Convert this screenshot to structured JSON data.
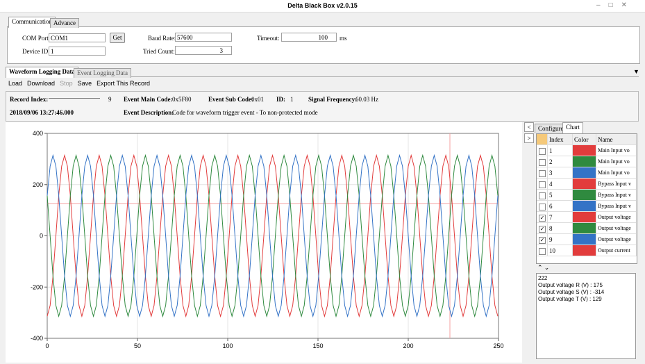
{
  "window": {
    "title": "Delta Black Box v2.0.15"
  },
  "comm_tabs": [
    "Communication",
    "Advance"
  ],
  "fields": {
    "com_port": {
      "label": "COM Port:",
      "value": "COM1"
    },
    "get": "Get",
    "device_id": {
      "label": "Device ID:",
      "value": "1"
    },
    "baud_rate": {
      "label": "Baud Rate:",
      "value": "57600"
    },
    "tried_count": {
      "label": "Tried Count:",
      "value": "3"
    },
    "timeout": {
      "label": "Timeout:",
      "value": "100",
      "unit": "ms"
    }
  },
  "log_tabs": [
    "Waveform Logging Data",
    "Event Logging Data"
  ],
  "toolbar": [
    "Load",
    "Download",
    "Stop",
    "Save",
    "Export This Record"
  ],
  "record": {
    "index_label": "Record Index:",
    "index": "9",
    "main_code_label": "Event Main Code:",
    "main_code": "0x5F80",
    "sub_code_label": "Event Sub Code:",
    "sub_code": "0x01",
    "id_label": "ID:",
    "id": "1",
    "freq_label": "Signal Frequency:",
    "freq": "60.03 Hz",
    "timestamp": "2018/09/06 13:27:46.000",
    "desc_label": "Event Description:",
    "desc": "Code for waveform trigger event - To non-protected mode"
  },
  "chart_data": {
    "type": "line",
    "xlim": [
      0,
      250
    ],
    "xticks": [
      0,
      50,
      100,
      150,
      200,
      250
    ],
    "ylim": [
      -400,
      400
    ],
    "yticks": [
      -400,
      -200,
      0,
      200,
      400
    ],
    "grid": true,
    "x": [
      0,
      1.6,
      3.2,
      4.8,
      6.4,
      8,
      9.6,
      11.2,
      12.8,
      14.4,
      16,
      17.6,
      19.2,
      20.8,
      22.4,
      24,
      25.6,
      27.2,
      28.8,
      30.4,
      32,
      33.6,
      35.2,
      36.8,
      38.4,
      40,
      41.6,
      43.2,
      44.8,
      46.4,
      48,
      49.6,
      51.2,
      52.8,
      54.4,
      56,
      57.6,
      59.2,
      60.8,
      62.4,
      64,
      65.6,
      67.2,
      68.8,
      70.4,
      72,
      73.6,
      75.2,
      76.8,
      78.4,
      80,
      81.6,
      83.2,
      84.8,
      86.4,
      88,
      89.6,
      91.2,
      92.8,
      94.4,
      96,
      97.6,
      99.2,
      100.8,
      102.4,
      104,
      105.6,
      107.2,
      108.8,
      110.4,
      112,
      113.6,
      115.2,
      116.8,
      118.4,
      120,
      121.6,
      123.2,
      124.8,
      126.4,
      128,
      129.6,
      131.2,
      132.8,
      134.4,
      136,
      137.6,
      139.2,
      140.8,
      142.4,
      144,
      145.6,
      147.2,
      148.8,
      150.4,
      152,
      153.6,
      155.2,
      156.8,
      158.4,
      160,
      161.6,
      163.2,
      164.8,
      166.4,
      168,
      169.6,
      171.2,
      172.8,
      174.4,
      176,
      177.6,
      179.2,
      180.8,
      182.4,
      184,
      185.6,
      187.2,
      188.8,
      190.4,
      192,
      193.6,
      195.2,
      196.8,
      198.4,
      200,
      201.6,
      203.2,
      204.8,
      206.4,
      208,
      209.6,
      211.2,
      212.8,
      214.4,
      216,
      217.6,
      219.2,
      220.8,
      222.4,
      224,
      225.6,
      227.2,
      228.8,
      230.4,
      232,
      233.6,
      235.2,
      236.8,
      238.4,
      240,
      241.6,
      243.2,
      244.8,
      246.4,
      248,
      249.6
    ],
    "series": [
      {
        "color": "#e23c3c",
        "values": [
          -314,
          -272,
          -157,
          0,
          157,
          272,
          314,
          272,
          157,
          0,
          -157,
          -272,
          -314,
          -272,
          -157,
          0,
          157,
          272,
          314,
          272,
          157,
          0,
          -157,
          -272,
          -314,
          -272,
          -157,
          0,
          157,
          272,
          314,
          272,
          157,
          0,
          -157,
          -272,
          -314,
          -272,
          -157,
          0,
          157,
          272,
          314,
          272,
          157,
          0,
          -157,
          -272,
          -314,
          -272,
          -157,
          0,
          157,
          272,
          314,
          272,
          157,
          0,
          -157,
          -272,
          -314,
          -272,
          -157,
          0,
          157,
          272,
          314,
          272,
          157,
          0,
          -157,
          -272,
          -314,
          -272,
          -157,
          0,
          157,
          272,
          314,
          272,
          157,
          0,
          -157,
          -272,
          -314,
          -272,
          -157,
          0,
          157,
          272,
          314,
          272,
          157,
          0,
          -157,
          -272,
          -314,
          -272,
          -157,
          0,
          157,
          272,
          314,
          272,
          157,
          0,
          -157,
          -272,
          -314,
          -272,
          -157,
          0,
          157,
          272,
          314,
          272,
          157,
          0,
          -157,
          -272,
          -314,
          -272,
          -157,
          0,
          157,
          272,
          314,
          272,
          157,
          0,
          -157,
          -272,
          -314,
          -272,
          -157,
          0,
          157,
          272,
          314,
          272,
          157,
          0,
          -157,
          -272,
          -314,
          -272,
          -157,
          0,
          157,
          272,
          314,
          272,
          157,
          0,
          -157,
          -272,
          -314
        ]
      },
      {
        "color": "#2f8a3f",
        "values": [
          157,
          0,
          -157,
          -272,
          -314,
          -272,
          -157,
          0,
          157,
          272,
          314,
          272,
          157,
          0,
          -157,
          -272,
          -314,
          -272,
          -157,
          0,
          157,
          272,
          314,
          272,
          157,
          0,
          -157,
          -272,
          -314,
          -272,
          -157,
          0,
          157,
          272,
          314,
          272,
          157,
          0,
          -157,
          -272,
          -314,
          -272,
          -157,
          0,
          157,
          272,
          314,
          272,
          157,
          0,
          -157,
          -272,
          -314,
          -272,
          -157,
          0,
          157,
          272,
          314,
          272,
          157,
          0,
          -157,
          -272,
          -314,
          -272,
          -157,
          0,
          157,
          272,
          314,
          272,
          157,
          0,
          -157,
          -272,
          -314,
          -272,
          -157,
          0,
          157,
          272,
          314,
          272,
          157,
          0,
          -157,
          -272,
          -314,
          -272,
          -157,
          0,
          157,
          272,
          314,
          272,
          157,
          0,
          -157,
          -272,
          -314,
          -272,
          -157,
          0,
          157,
          272,
          314,
          272,
          157,
          0,
          -157,
          -272,
          -314,
          -272,
          -157,
          0,
          157,
          272,
          314,
          272,
          157,
          0,
          -157,
          -272,
          -314,
          -272,
          -157,
          0,
          157,
          272,
          314,
          272,
          157,
          0,
          -157,
          -272,
          -314,
          -272,
          -157,
          0,
          157,
          272,
          314,
          272,
          157,
          0,
          -157,
          -272,
          -314,
          -272,
          -157,
          0,
          157,
          272,
          314,
          272,
          157
        ]
      },
      {
        "color": "#3473c6",
        "values": [
          157,
          272,
          314,
          272,
          157,
          0,
          -157,
          -272,
          -314,
          -272,
          -157,
          0,
          157,
          272,
          314,
          272,
          157,
          0,
          -157,
          -272,
          -314,
          -272,
          -157,
          0,
          157,
          272,
          314,
          272,
          157,
          0,
          -157,
          -272,
          -314,
          -272,
          -157,
          0,
          157,
          272,
          314,
          272,
          157,
          0,
          -157,
          -272,
          -314,
          -272,
          -157,
          0,
          157,
          272,
          314,
          272,
          157,
          0,
          -157,
          -272,
          -314,
          -272,
          -157,
          0,
          157,
          272,
          314,
          272,
          157,
          0,
          -157,
          -272,
          -314,
          -272,
          -157,
          0,
          157,
          272,
          314,
          272,
          157,
          0,
          -157,
          -272,
          -314,
          -272,
          -157,
          0,
          157,
          272,
          314,
          272,
          157,
          0,
          -157,
          -272,
          -314,
          -272,
          -157,
          0,
          157,
          272,
          314,
          272,
          157,
          0,
          -157,
          -272,
          -314,
          -272,
          -157,
          0,
          157,
          272,
          314,
          272,
          157,
          0,
          -157,
          -272,
          -314,
          -272,
          -157,
          0,
          157,
          272,
          314,
          272,
          157,
          0,
          -157,
          -272,
          -314,
          -272,
          -157,
          0,
          157,
          272,
          314,
          272,
          157,
          0,
          -157,
          -272,
          -314,
          -272,
          -157,
          0,
          157,
          272,
          314,
          272,
          157,
          0,
          -157,
          -272,
          -314,
          -272,
          -157,
          0,
          157
        ]
      }
    ]
  },
  "side": {
    "tabs": [
      "Configure",
      "Chart"
    ],
    "columns": [
      "Index",
      "Color",
      "Name"
    ],
    "rows": [
      {
        "index": "1",
        "color": "#e23c3c",
        "name": "Main Input vo",
        "checked": false
      },
      {
        "index": "2",
        "color": "#2f8a3f",
        "name": "Main Input vo",
        "checked": false
      },
      {
        "index": "3",
        "color": "#3473c6",
        "name": "Main Input vo",
        "checked": false
      },
      {
        "index": "4",
        "color": "#e23c3c",
        "name": "Bypass Input v",
        "checked": false
      },
      {
        "index": "5",
        "color": "#2f8a3f",
        "name": "Bypass Input v",
        "checked": false
      },
      {
        "index": "6",
        "color": "#3473c6",
        "name": "Bypass Input v",
        "checked": false
      },
      {
        "index": "7",
        "color": "#e23c3c",
        "name": "Output voltage",
        "checked": true
      },
      {
        "index": "8",
        "color": "#2f8a3f",
        "name": "Output voltage",
        "checked": true
      },
      {
        "index": "9",
        "color": "#3473c6",
        "name": "Output voltage",
        "checked": true
      },
      {
        "index": "10",
        "color": "#e23c3c",
        "name": "Output current",
        "checked": false
      }
    ],
    "info": [
      "222",
      "Output voltage R (V) : 175",
      "Output voltage S (V) : -314",
      "Output voltage T (V) : 129"
    ]
  }
}
